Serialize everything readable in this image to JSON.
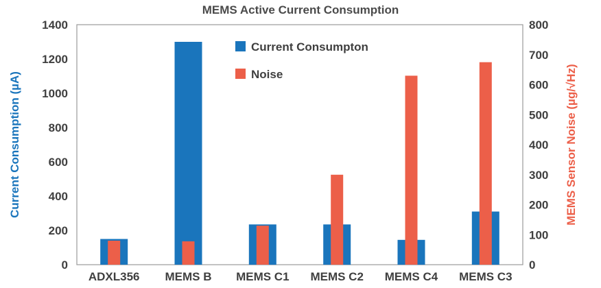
{
  "chart_data": {
    "type": "bar",
    "title": "MEMS Active Current Consumption",
    "categories": [
      "ADXL356",
      "MEMS B",
      "MEMS C1",
      "MEMS C2",
      "MEMS C4",
      "MEMS C3"
    ],
    "series": [
      {
        "name": "Current Consumpton",
        "axis": "left",
        "color": "#1a75bc",
        "values": [
          150,
          1300,
          235,
          235,
          145,
          310
        ]
      },
      {
        "name": "Noise",
        "axis": "right",
        "color": "#ec5f49",
        "values": [
          80,
          78,
          130,
          300,
          630,
          675
        ]
      }
    ],
    "ylabel": "Current Consumption (µA)",
    "ylabel_right": "MEMS Sensor Noise (µg/√Hz)",
    "ylim": [
      0,
      1400
    ],
    "ylim_right": [
      0,
      800
    ],
    "yticks": [
      0,
      200,
      400,
      600,
      800,
      1000,
      1200,
      1400
    ],
    "yticks_right": [
      0,
      100,
      200,
      300,
      400,
      500,
      600,
      700,
      800
    ],
    "left_axis_color": "#1a75bc",
    "right_axis_color": "#ec5f49",
    "grid": false,
    "legend_position": "top-center"
  }
}
